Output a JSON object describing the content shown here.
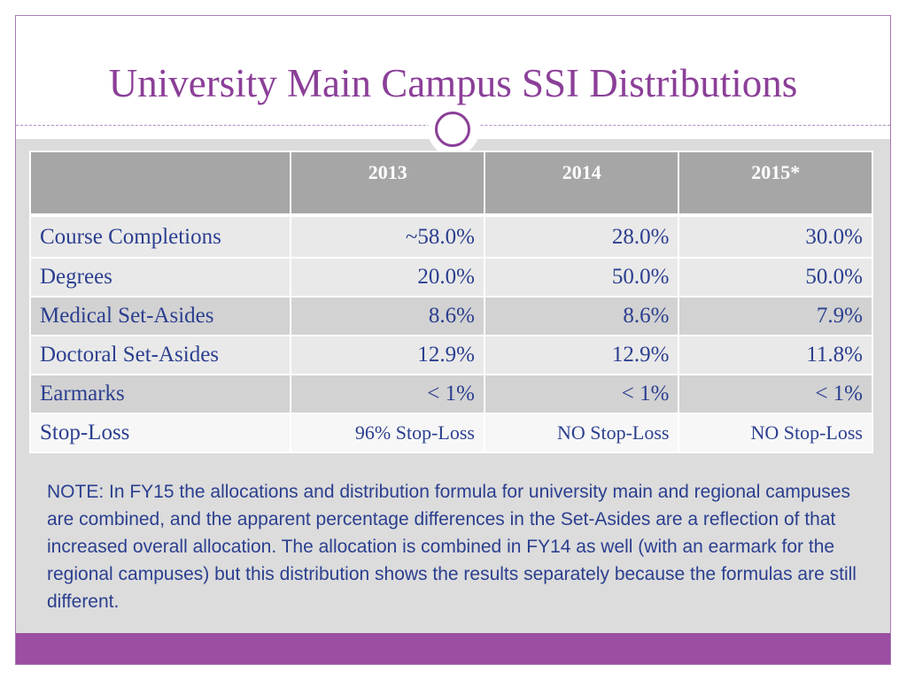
{
  "slide": {
    "title": "University Main Campus SSI Distributions"
  },
  "table": {
    "headers": [
      "",
      "2013",
      "2014",
      "2015*"
    ],
    "rows": [
      {
        "label": "Course Completions",
        "values": [
          "~58.0%",
          "28.0%",
          "30.0%"
        ]
      },
      {
        "label": "Degrees",
        "values": [
          "20.0%",
          "50.0%",
          "50.0%"
        ]
      },
      {
        "label": "Medical Set-Asides",
        "values": [
          "8.6%",
          "8.6%",
          "7.9%"
        ]
      },
      {
        "label": "Doctoral Set-Asides",
        "values": [
          "12.9%",
          "12.9%",
          "11.8%"
        ]
      },
      {
        "label": "Earmarks",
        "values": [
          "< 1%",
          "< 1%",
          "< 1%"
        ]
      },
      {
        "label": "Stop-Loss",
        "values": [
          "96% Stop-Loss",
          "NO Stop-Loss",
          "NO Stop-Loss"
        ]
      }
    ]
  },
  "note": "NOTE:  In FY15 the allocations and distribution formula for university main and regional campuses are combined, and the apparent percentage differences in the Set-Asides are a reflection of that increased overall allocation.  The allocation is combined in FY14 as well (with an earmark for the regional campuses) but this distribution shows the results separately because the formulas are still different.",
  "colors": {
    "title": "#8b3f98",
    "text": "#2b3f8f",
    "header_bg": "#a6a6a6",
    "content_bg": "#dcdcdc",
    "bottom_bar": "#9b4ea2"
  },
  "icons": {
    "divider_ornament": "circle-ornament-icon"
  }
}
